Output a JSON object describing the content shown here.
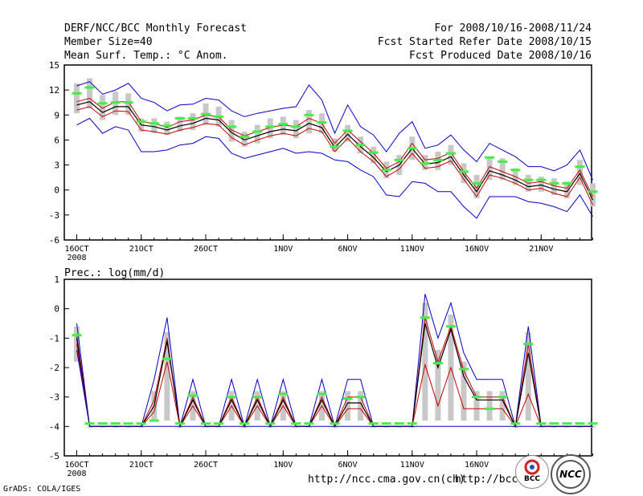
{
  "header": {
    "left": [
      "DERF/NCC/BCC Monthly Forecast",
      "Member Size=40",
      "Mean Surf. Temp.: °C Anom."
    ],
    "right": [
      "For 2008/10/16-2008/11/24",
      "Fcst Started Refer Date 2008/10/15",
      "Fcst Produced Date 2008/10/16"
    ]
  },
  "footer": {
    "credit": "GrADS: COLA/IGES",
    "url1": "http://ncc.cma.gov.cn(ch)",
    "url2": "http://bcc.",
    "logo_bcc_text": "BCC",
    "logo_ncc_text": "NCC"
  },
  "colors": {
    "max": "#0000cc",
    "min": "#0000cc",
    "p_upper": "#cc0000",
    "p_lower": "#cc0000",
    "mean": "#000000",
    "box": "#c8c8c8",
    "obs": "#44ee44"
  },
  "chart_data": [
    {
      "type": "line",
      "title": "Mean Surf. Temp.: °C Anom.",
      "x_start": "2008-10-16",
      "x_ticks": [
        {
          "day": 0,
          "label": "16OCT"
        },
        {
          "day": 5,
          "label": "21OCT"
        },
        {
          "day": 10,
          "label": "26OCT"
        },
        {
          "day": 16,
          "label": "1NOV"
        },
        {
          "day": 21,
          "label": "6NOV"
        },
        {
          "day": 26,
          "label": "11NOV"
        },
        {
          "day": 31,
          "label": "16NOV"
        },
        {
          "day": 36,
          "label": "21NOV"
        }
      ],
      "year_label": "2008",
      "ylim": [
        -6,
        15
      ],
      "yticks": [
        -6,
        -3,
        0,
        3,
        6,
        9,
        12,
        15
      ],
      "series": [
        {
          "name": "max",
          "values": [
            12.5,
            13.0,
            11.5,
            12.0,
            12.8,
            11.0,
            10.5,
            9.5,
            10.2,
            10.3,
            11.0,
            10.8,
            9.5,
            8.8,
            9.2,
            9.5,
            9.8,
            10.0,
            12.6,
            10.8,
            6.8,
            10.2,
            7.6,
            6.6,
            4.6,
            6.8,
            8.2,
            5.0,
            5.4,
            6.6,
            4.8,
            3.4,
            5.6,
            4.8,
            4.0,
            2.8,
            2.8,
            2.3,
            3.0,
            4.8,
            1.2
          ]
        },
        {
          "name": "p_upper",
          "values": [
            10.6,
            11.0,
            9.8,
            10.6,
            10.6,
            8.2,
            8.0,
            7.5,
            8.2,
            8.4,
            9.0,
            8.8,
            7.2,
            6.5,
            7.0,
            7.5,
            7.8,
            7.6,
            8.6,
            8.0,
            5.6,
            7.2,
            5.8,
            4.4,
            2.6,
            3.4,
            5.6,
            3.6,
            3.8,
            4.5,
            2.2,
            0.2,
            2.8,
            2.2,
            1.6,
            0.8,
            1.0,
            0.5,
            0.2,
            2.4,
            -0.8
          ]
        },
        {
          "name": "mean",
          "values": [
            10.2,
            10.6,
            9.3,
            10.0,
            10.0,
            7.8,
            7.6,
            7.2,
            7.7,
            8.0,
            8.6,
            8.4,
            6.9,
            6.0,
            6.5,
            7.0,
            7.3,
            7.1,
            8.0,
            7.5,
            5.1,
            6.7,
            5.2,
            3.9,
            2.2,
            3.0,
            5.0,
            3.1,
            3.3,
            4.0,
            1.8,
            -0.2,
            2.3,
            1.8,
            1.2,
            0.4,
            0.6,
            0.1,
            -0.2,
            2.0,
            -1.2
          ]
        },
        {
          "name": "p_lower",
          "values": [
            9.6,
            10.0,
            8.8,
            9.5,
            9.4,
            7.2,
            7.0,
            6.7,
            7.2,
            7.5,
            8.0,
            7.8,
            6.3,
            5.4,
            6.0,
            6.5,
            6.8,
            6.5,
            7.4,
            7.0,
            4.6,
            6.2,
            4.6,
            3.4,
            1.6,
            2.5,
            4.4,
            2.6,
            2.8,
            3.5,
            1.3,
            -0.8,
            1.8,
            1.4,
            0.8,
            0.0,
            0.2,
            -0.4,
            -0.8,
            1.5,
            -1.8
          ]
        },
        {
          "name": "min",
          "values": [
            7.8,
            8.6,
            6.8,
            7.6,
            7.2,
            4.6,
            4.6,
            4.8,
            5.4,
            5.6,
            6.4,
            6.2,
            4.4,
            3.8,
            4.2,
            4.6,
            5.0,
            4.4,
            4.6,
            4.4,
            3.6,
            3.4,
            2.4,
            1.6,
            -0.6,
            -0.8,
            1.0,
            0.8,
            -0.2,
            -0.2,
            -2.0,
            -3.4,
            -0.8,
            -0.8,
            -0.8,
            -1.4,
            -1.6,
            -2.0,
            -2.6,
            -0.6,
            -3.2
          ]
        }
      ],
      "box_range": [
        [
          9.2,
          12.8
        ],
        [
          9.8,
          13.4
        ],
        [
          8.4,
          11.4
        ],
        [
          9.0,
          11.8
        ],
        [
          9.0,
          11.6
        ],
        [
          7.0,
          8.6
        ],
        [
          6.8,
          8.6
        ],
        [
          6.6,
          8.2
        ],
        [
          7.0,
          8.8
        ],
        [
          7.2,
          9.2
        ],
        [
          7.8,
          10.4
        ],
        [
          7.6,
          10.0
        ],
        [
          5.8,
          8.4
        ],
        [
          5.2,
          7.0
        ],
        [
          5.6,
          7.8
        ],
        [
          6.2,
          8.6
        ],
        [
          6.6,
          8.8
        ],
        [
          6.2,
          8.4
        ],
        [
          6.8,
          9.6
        ],
        [
          6.8,
          9.2
        ],
        [
          4.6,
          6.2
        ],
        [
          5.8,
          7.8
        ],
        [
          4.4,
          6.4
        ],
        [
          3.2,
          5.2
        ],
        [
          1.4,
          3.4
        ],
        [
          1.8,
          4.2
        ],
        [
          3.6,
          6.4
        ],
        [
          2.4,
          4.2
        ],
        [
          2.4,
          4.6
        ],
        [
          3.0,
          5.4
        ],
        [
          0.8,
          3.2
        ],
        [
          -1.0,
          1.8
        ],
        [
          1.2,
          4.0
        ],
        [
          1.2,
          3.8
        ],
        [
          0.6,
          2.6
        ],
        [
          -0.2,
          1.8
        ],
        [
          -0.2,
          1.6
        ],
        [
          -0.6,
          1.4
        ],
        [
          -1.0,
          1.0
        ],
        [
          0.6,
          3.6
        ],
        [
          -2.0,
          0.8
        ]
      ],
      "observed": [
        11.6,
        12.3,
        10.4,
        10.5,
        10.5,
        8.2,
        8.0,
        7.7,
        8.6,
        8.6,
        9.1,
        8.8,
        7.6,
        6.4,
        7.0,
        7.6,
        7.9,
        7.6,
        9.0,
        8.1,
        5.2,
        7.1,
        5.4,
        4.5,
        2.4,
        3.6,
        5.0,
        3.2,
        3.6,
        4.4,
        2.2,
        0.8,
        3.9,
        3.4,
        2.4,
        1.2,
        1.2,
        0.8,
        0.8,
        2.8,
        -0.2
      ]
    },
    {
      "type": "line",
      "title": "Prec.: log(mm/d)",
      "x_start": "2008-10-16",
      "x_ticks": [
        {
          "day": 0,
          "label": "16OCT"
        },
        {
          "day": 5,
          "label": "21OCT"
        },
        {
          "day": 10,
          "label": "26OCT"
        },
        {
          "day": 16,
          "label": "1NOV"
        },
        {
          "day": 21,
          "label": "6NOV"
        },
        {
          "day": 26,
          "label": "11NOV"
        },
        {
          "day": 31,
          "label": "16NOV"
        }
      ],
      "year_label": "2008",
      "ylim": [
        -5,
        1
      ],
      "yticks": [
        -5,
        -4,
        -3,
        -2,
        -1,
        0,
        1
      ],
      "series": [
        {
          "name": "max",
          "values": [
            -0.5,
            -4,
            -4,
            -4,
            -4,
            -4,
            -2.4,
            -0.3,
            -4,
            -2.4,
            -4,
            -4,
            -2.4,
            -4,
            -2.4,
            -4,
            -2.4,
            -4,
            -4,
            -2.4,
            -4,
            -2.4,
            -2.4,
            -4,
            -4,
            -4,
            -4,
            0.5,
            -1,
            0.2,
            -1.5,
            -2.4,
            -2.4,
            -2.4,
            -4,
            -0.6,
            -4,
            -4,
            -4,
            -4,
            -4
          ]
        },
        {
          "name": "p_upper",
          "values": [
            -0.9,
            -4,
            -4,
            -4,
            -4,
            -4,
            -3.1,
            -1.0,
            -4,
            -3.0,
            -4,
            -4,
            -3.0,
            -4,
            -3.0,
            -4,
            -3.0,
            -4,
            -4,
            -3.0,
            -4,
            -3.0,
            -3.0,
            -4,
            -4,
            -4,
            -4,
            -0.3,
            -1.8,
            -0.6,
            -2.1,
            -3.0,
            -3.0,
            -3.0,
            -4,
            -1.2,
            -4,
            -4,
            -4,
            -4,
            -4
          ]
        },
        {
          "name": "mean",
          "values": [
            -1.0,
            -4,
            -4,
            -4,
            -4,
            -4,
            -3.3,
            -1.1,
            -4,
            -3.1,
            -4,
            -4,
            -3.1,
            -4,
            -3.1,
            -4,
            -3.1,
            -4,
            -4,
            -3.1,
            -4,
            -3.2,
            -3.2,
            -4,
            -4,
            -4,
            -4,
            -0.5,
            -2.0,
            -0.7,
            -2.3,
            -3.1,
            -3.1,
            -3.1,
            -4,
            -1.5,
            -4,
            -4,
            -4,
            -4,
            -4
          ]
        },
        {
          "name": "p_lower",
          "values": [
            -1.2,
            -4,
            -4,
            -4,
            -4,
            -4,
            -3.5,
            -1.8,
            -4,
            -3.3,
            -4,
            -4,
            -3.3,
            -4,
            -3.3,
            -4,
            -3.3,
            -4,
            -4,
            -3.3,
            -4,
            -3.4,
            -3.4,
            -4,
            -4,
            -4,
            -4,
            -1.9,
            -3.3,
            -2.0,
            -3.4,
            -3.4,
            -3.4,
            -3.4,
            -4,
            -2.9,
            -4,
            -4,
            -4,
            -4,
            -4
          ]
        },
        {
          "name": "min",
          "values": [
            -1.4,
            -4,
            -4,
            -4,
            -4,
            -4,
            -4,
            -4,
            -4,
            -4,
            -4,
            -4,
            -4,
            -4,
            -4,
            -4,
            -4,
            -4,
            -4,
            -4,
            -4,
            -4,
            -4,
            -4,
            -4,
            -4,
            -4,
            -4,
            -4,
            -4,
            -4,
            -4,
            -4,
            -4,
            -4,
            -4,
            -4,
            -4,
            -4,
            -4,
            -4
          ]
        }
      ],
      "box_range": [
        [
          -1.8,
          -0.6
        ],
        [
          -4,
          -4
        ],
        [
          -4,
          -4
        ],
        [
          -4,
          -4
        ],
        [
          -4,
          -4
        ],
        [
          -4,
          -4
        ],
        [
          -3.8,
          -2.8
        ],
        [
          -3.8,
          -0.8
        ],
        [
          -4,
          -4
        ],
        [
          -3.8,
          -2.8
        ],
        [
          -4,
          -4
        ],
        [
          -4,
          -4
        ],
        [
          -3.8,
          -2.8
        ],
        [
          -4,
          -4
        ],
        [
          -3.8,
          -2.8
        ],
        [
          -4,
          -4
        ],
        [
          -3.8,
          -2.8
        ],
        [
          -4,
          -4
        ],
        [
          -4,
          -4
        ],
        [
          -3.8,
          -2.8
        ],
        [
          -4,
          -4
        ],
        [
          -3.8,
          -2.8
        ],
        [
          -3.8,
          -2.8
        ],
        [
          -4,
          -4
        ],
        [
          -4,
          -4
        ],
        [
          -4,
          -4
        ],
        [
          -4,
          -4
        ],
        [
          -3.8,
          0.2
        ],
        [
          -3.8,
          -1.4
        ],
        [
          -3.8,
          -0.2
        ],
        [
          -3.8,
          -1.8
        ],
        [
          -3.8,
          -2.8
        ],
        [
          -3.8,
          -2.8
        ],
        [
          -3.8,
          -2.8
        ],
        [
          -4,
          -4
        ],
        [
          -3.8,
          -0.8
        ],
        [
          -4,
          -4
        ],
        [
          -4,
          -4
        ],
        [
          -4,
          -4
        ],
        [
          -4,
          -4
        ],
        [
          -4,
          -4
        ]
      ],
      "observed": [
        -0.9,
        -3.9,
        -3.9,
        -3.9,
        -3.9,
        -3.9,
        -3.8,
        -1.7,
        -3.9,
        -2.95,
        -3.9,
        -3.9,
        -3.0,
        -3.9,
        -3.0,
        -3.9,
        -2.9,
        -3.9,
        -3.9,
        -2.9,
        -3.9,
        -3.05,
        -3.0,
        -3.9,
        -3.9,
        -3.9,
        -3.9,
        -0.3,
        -1.85,
        -0.6,
        -2.05,
        -3.0,
        -3.4,
        -3.0,
        -3.9,
        -1.2,
        -3.9,
        -3.9,
        -3.9,
        -3.9,
        -3.9
      ]
    }
  ]
}
